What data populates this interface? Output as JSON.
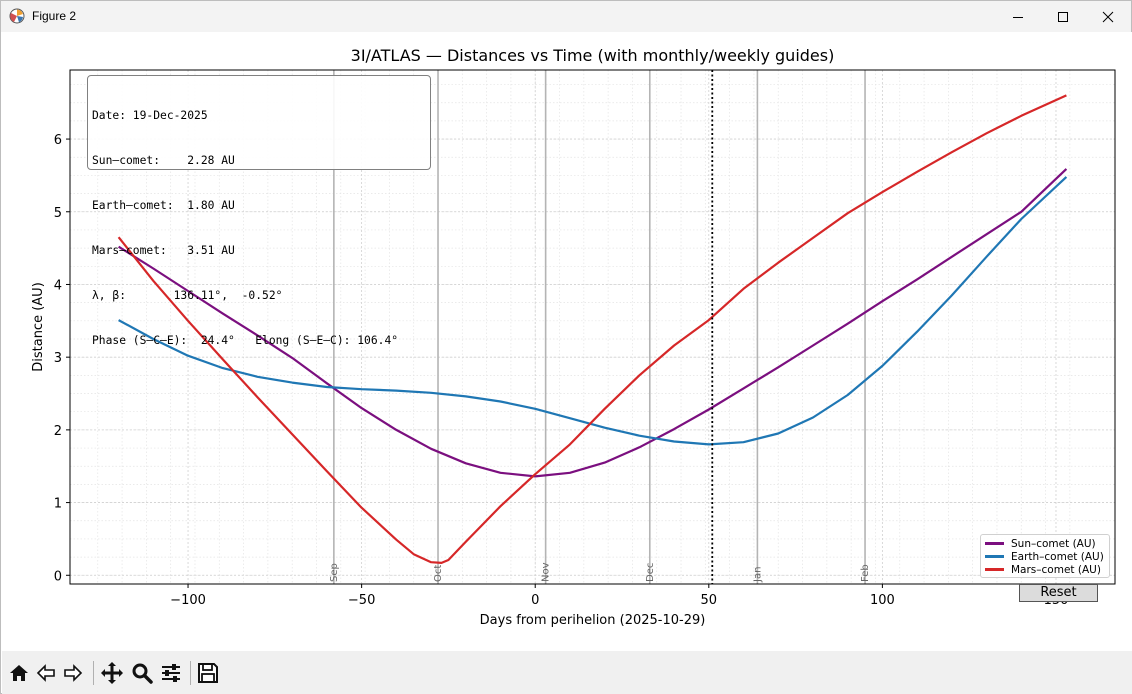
{
  "window": {
    "title": "Figure 2",
    "controls": [
      "minimize",
      "maximize",
      "close"
    ]
  },
  "toolbar": {
    "buttons": [
      "home-icon",
      "back-icon",
      "forward-icon",
      "pan-icon",
      "zoom-icon",
      "configure-icon",
      "save-icon"
    ]
  },
  "info_box": {
    "lines": [
      "Date: 19-Dec-2025",
      "Sun–comet:    2.28 AU",
      "Earth–comet:  1.80 AU",
      "Mars–comet:   3.51 AU",
      "λ, β:       136.11°,  -0.52°",
      "Phase (S–C–E):  24.4°   Elong (S–E–C): 106.4°"
    ]
  },
  "reset_label": "Reset",
  "chart_data": {
    "type": "line",
    "title": "3I/ATLAS — Distances vs Time (with monthly/weekly guides)",
    "xlabel": "Days from perihelion (2025-10-29)",
    "ylabel": "Distance (AU)",
    "xlim": [
      -134,
      167
    ],
    "ylim": [
      -0.12,
      6.95
    ],
    "xticks": [
      -100,
      -50,
      0,
      50,
      100,
      150
    ],
    "xtick_labels": [
      "−100",
      "−50",
      "0",
      "50",
      "100",
      "150"
    ],
    "yticks": [
      0,
      1,
      2,
      3,
      4,
      5,
      6
    ],
    "grid": true,
    "legend_position": "lower-right",
    "month_guides": [
      {
        "label": "Sep",
        "x": -58
      },
      {
        "label": "Oct",
        "x": -28
      },
      {
        "label": "Nov",
        "x": 3
      },
      {
        "label": "Dec",
        "x": 33
      },
      {
        "label": "Jan",
        "x": 64
      },
      {
        "label": "Feb",
        "x": 95
      }
    ],
    "cursor_x": 51,
    "series": [
      {
        "name": "Sun–comet (AU)",
        "color": "#7b0f7f",
        "x": [
          -120,
          -110,
          -100,
          -90,
          -80,
          -70,
          -60,
          -50,
          -40,
          -30,
          -20,
          -10,
          0,
          10,
          20,
          30,
          40,
          50,
          60,
          70,
          80,
          90,
          100,
          110,
          120,
          130,
          140,
          153
        ],
        "y": [
          4.52,
          4.22,
          3.91,
          3.6,
          3.3,
          2.99,
          2.64,
          2.3,
          2.0,
          1.74,
          1.54,
          1.41,
          1.36,
          1.41,
          1.55,
          1.76,
          2.01,
          2.28,
          2.57,
          2.86,
          3.16,
          3.46,
          3.77,
          4.07,
          4.38,
          4.69,
          5.0,
          5.59
        ]
      },
      {
        "name": "Earth–comet (AU)",
        "color": "#1f77b4",
        "x": [
          -120,
          -110,
          -100,
          -90,
          -80,
          -70,
          -60,
          -50,
          -40,
          -30,
          -20,
          -10,
          0,
          10,
          20,
          30,
          40,
          50,
          60,
          70,
          80,
          90,
          100,
          110,
          120,
          130,
          140,
          153
        ],
        "y": [
          3.51,
          3.25,
          3.02,
          2.85,
          2.73,
          2.65,
          2.59,
          2.56,
          2.54,
          2.51,
          2.46,
          2.39,
          2.29,
          2.16,
          2.03,
          1.92,
          1.84,
          1.8,
          1.83,
          1.95,
          2.17,
          2.48,
          2.88,
          3.35,
          3.85,
          4.38,
          4.9,
          5.48
        ]
      },
      {
        "name": "Mars–comet (AU)",
        "color": "#d62728",
        "x": [
          -120,
          -110,
          -100,
          -90,
          -80,
          -70,
          -60,
          -50,
          -40,
          -35,
          -30,
          -27,
          -25,
          -20,
          -10,
          0,
          10,
          20,
          30,
          40,
          50,
          60,
          70,
          80,
          90,
          100,
          110,
          120,
          130,
          140,
          153
        ],
        "y": [
          4.65,
          4.05,
          3.5,
          2.97,
          2.45,
          1.94,
          1.43,
          0.93,
          0.49,
          0.29,
          0.18,
          0.17,
          0.21,
          0.46,
          0.95,
          1.39,
          1.8,
          2.29,
          2.75,
          3.16,
          3.51,
          3.94,
          4.3,
          4.64,
          4.98,
          5.27,
          5.55,
          5.82,
          6.08,
          6.32,
          6.6
        ]
      }
    ]
  }
}
